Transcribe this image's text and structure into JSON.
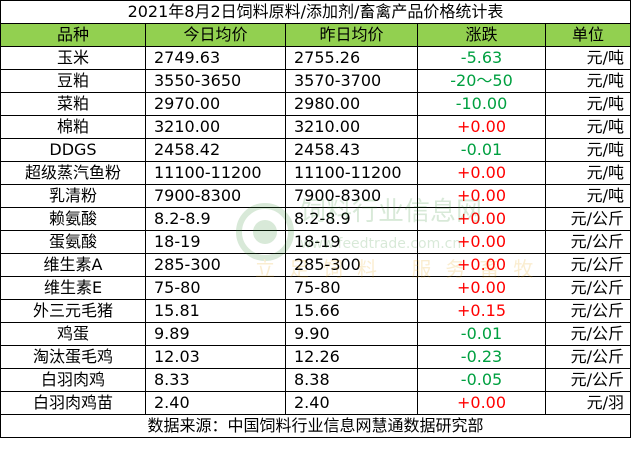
{
  "title": "2021年8月2日饲料原料/添加剂/畜禽产品价格统计表",
  "headers": {
    "name": "品种",
    "today": "今日均价",
    "yesterday": "昨日均价",
    "change": "涨跌",
    "unit": "单位"
  },
  "rows": [
    {
      "name": "玉米",
      "today": "2749.63",
      "yesterday": "2755.26",
      "change": "-5.63",
      "direction": "down",
      "unit": "元/吨"
    },
    {
      "name": "豆粕",
      "today": "3550-3650",
      "yesterday": "3570-3700",
      "change": "-20～50",
      "direction": "down",
      "unit": "元/吨"
    },
    {
      "name": "菜粕",
      "today": "2970.00",
      "yesterday": "2980.00",
      "change": "-10.00",
      "direction": "down",
      "unit": "元/吨"
    },
    {
      "name": "棉粕",
      "today": "3210.00",
      "yesterday": "3210.00",
      "change": "+0.00",
      "direction": "up",
      "unit": "元/吨"
    },
    {
      "name": "DDGS",
      "today": "2458.42",
      "yesterday": "2458.43",
      "change": "-0.01",
      "direction": "down",
      "unit": "元/吨"
    },
    {
      "name": "超级蒸汽鱼粉",
      "today": "11100-11200",
      "yesterday": "11100-11200",
      "change": "+0.00",
      "direction": "up",
      "unit": "元/吨"
    },
    {
      "name": "乳清粉",
      "today": "7900-8300",
      "yesterday": "7900-8300",
      "change": "+0.00",
      "direction": "up",
      "unit": "元/吨"
    },
    {
      "name": "赖氨酸",
      "today": "8.2-8.9",
      "yesterday": "8.2-8.9",
      "change": "+0.00",
      "direction": "up",
      "unit": "元/公斤"
    },
    {
      "name": "蛋氨酸",
      "today": "18-19",
      "yesterday": "18-19",
      "change": "+0.00",
      "direction": "up",
      "unit": "元/公斤"
    },
    {
      "name": "维生素A",
      "today": "285-300",
      "yesterday": "285-300",
      "change": "+0.00",
      "direction": "up",
      "unit": "元/公斤"
    },
    {
      "name": "维生素E",
      "today": "75-80",
      "yesterday": "75-80",
      "change": "+0.00",
      "direction": "up",
      "unit": "元/公斤"
    },
    {
      "name": "外三元毛猪",
      "today": "15.81",
      "yesterday": "15.66",
      "change": "+0.15",
      "direction": "up",
      "unit": "元/公斤"
    },
    {
      "name": "鸡蛋",
      "today": "9.89",
      "yesterday": "9.90",
      "change": "-0.01",
      "direction": "down",
      "unit": "元/公斤"
    },
    {
      "name": "淘汰蛋毛鸡",
      "today": "12.03",
      "yesterday": "12.26",
      "change": "-0.23",
      "direction": "down",
      "unit": "元/公斤"
    },
    {
      "name": "白羽肉鸡",
      "today": "8.33",
      "yesterday": "8.38",
      "change": "-0.05",
      "direction": "down",
      "unit": "元/公斤"
    },
    {
      "name": "白羽肉鸡苗",
      "today": "2.40",
      "yesterday": "2.40",
      "change": "+0.00",
      "direction": "up",
      "unit": "元/羽"
    }
  ],
  "source": "数据来源：中国饲料行业信息网慧通数据研究部",
  "watermark": {
    "text1": "饲料行业信息网",
    "text2": "www.feedtrade.com.cn",
    "text3": "立足饲料 服务畜牧"
  },
  "colors": {
    "header_bg": "#92d050",
    "up": "#ff0000",
    "down": "#00a040",
    "border": "#000000"
  }
}
